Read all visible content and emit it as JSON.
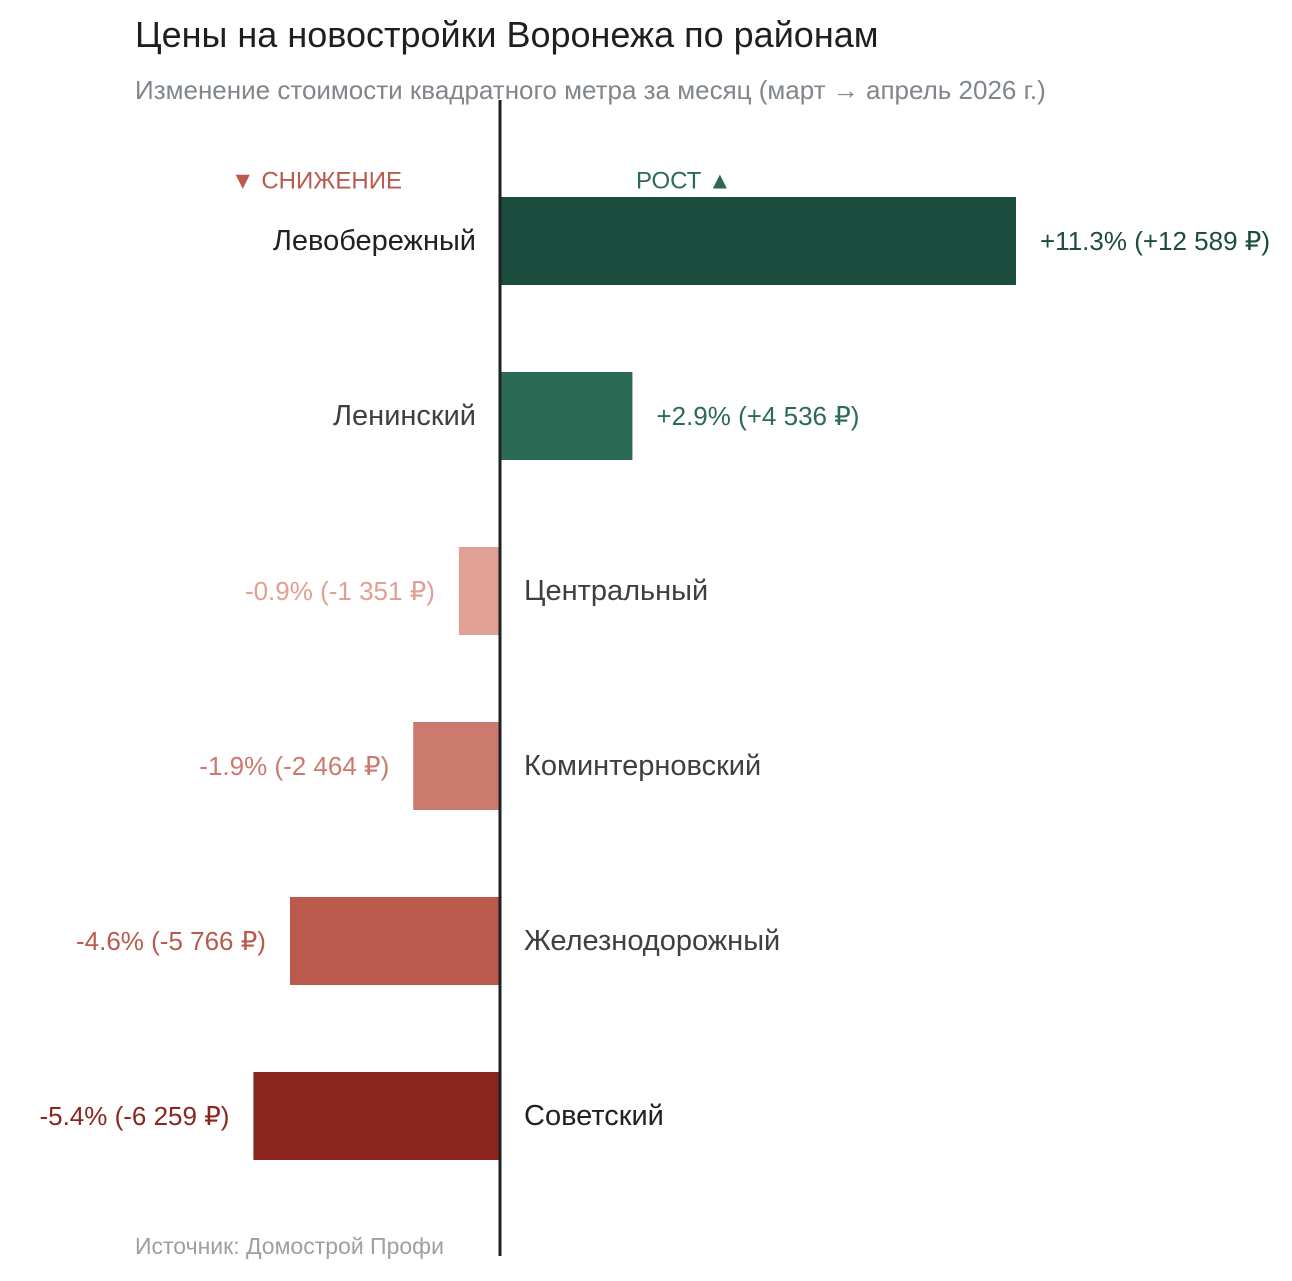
{
  "chart_data": {
    "type": "bar",
    "orientation": "horizontal-diverging",
    "title": "Цены на новостройки Воронежа по районам",
    "subtitle": "Изменение стоимости квадратного метра за месяц (март → апрель 2026 г.)",
    "source": "Источник: Домострой Профи",
    "legend": {
      "decrease": "▼ СНИЖЕНИЕ",
      "increase": "РОСТ ▲"
    },
    "categories": [
      "Левобережный",
      "Ленинский",
      "Центральный",
      "Коминтерновский",
      "Железнодорожный",
      "Советский"
    ],
    "values": [
      11.3,
      2.9,
      -0.9,
      -1.9,
      -4.6,
      -5.4
    ],
    "value_labels": [
      "+11.3% (+12 589 ₽)",
      "+2.9% (+4 536 ₽)",
      "-0.9% (-1 351 ₽)",
      "-1.9% (-2 464 ₽)",
      "-4.6% (-5 766 ₽)",
      "-5.4% (-6 259 ₽)"
    ],
    "rub_change": [
      12589,
      4536,
      -1351,
      -2464,
      -5766,
      -6259
    ],
    "bar_colors": [
      "#1b4d3e",
      "#2b6b55",
      "#e0a093",
      "#cd7a6e",
      "#b95a4c",
      "#8a261f"
    ],
    "label_colors": [
      "#1b4d3e",
      "#2b6b55",
      "#e0a093",
      "#cd7a6e",
      "#b95a4c",
      "#8a261f"
    ],
    "category_label_colors": [
      "#202124",
      "#3c4043",
      "#3c4043",
      "#3c4043",
      "#3c4043",
      "#202124"
    ],
    "legend_colors": {
      "decrease": "#b95a4c",
      "increase": "#2b6b55"
    },
    "axis_color": "#202124",
    "grid": false
  }
}
